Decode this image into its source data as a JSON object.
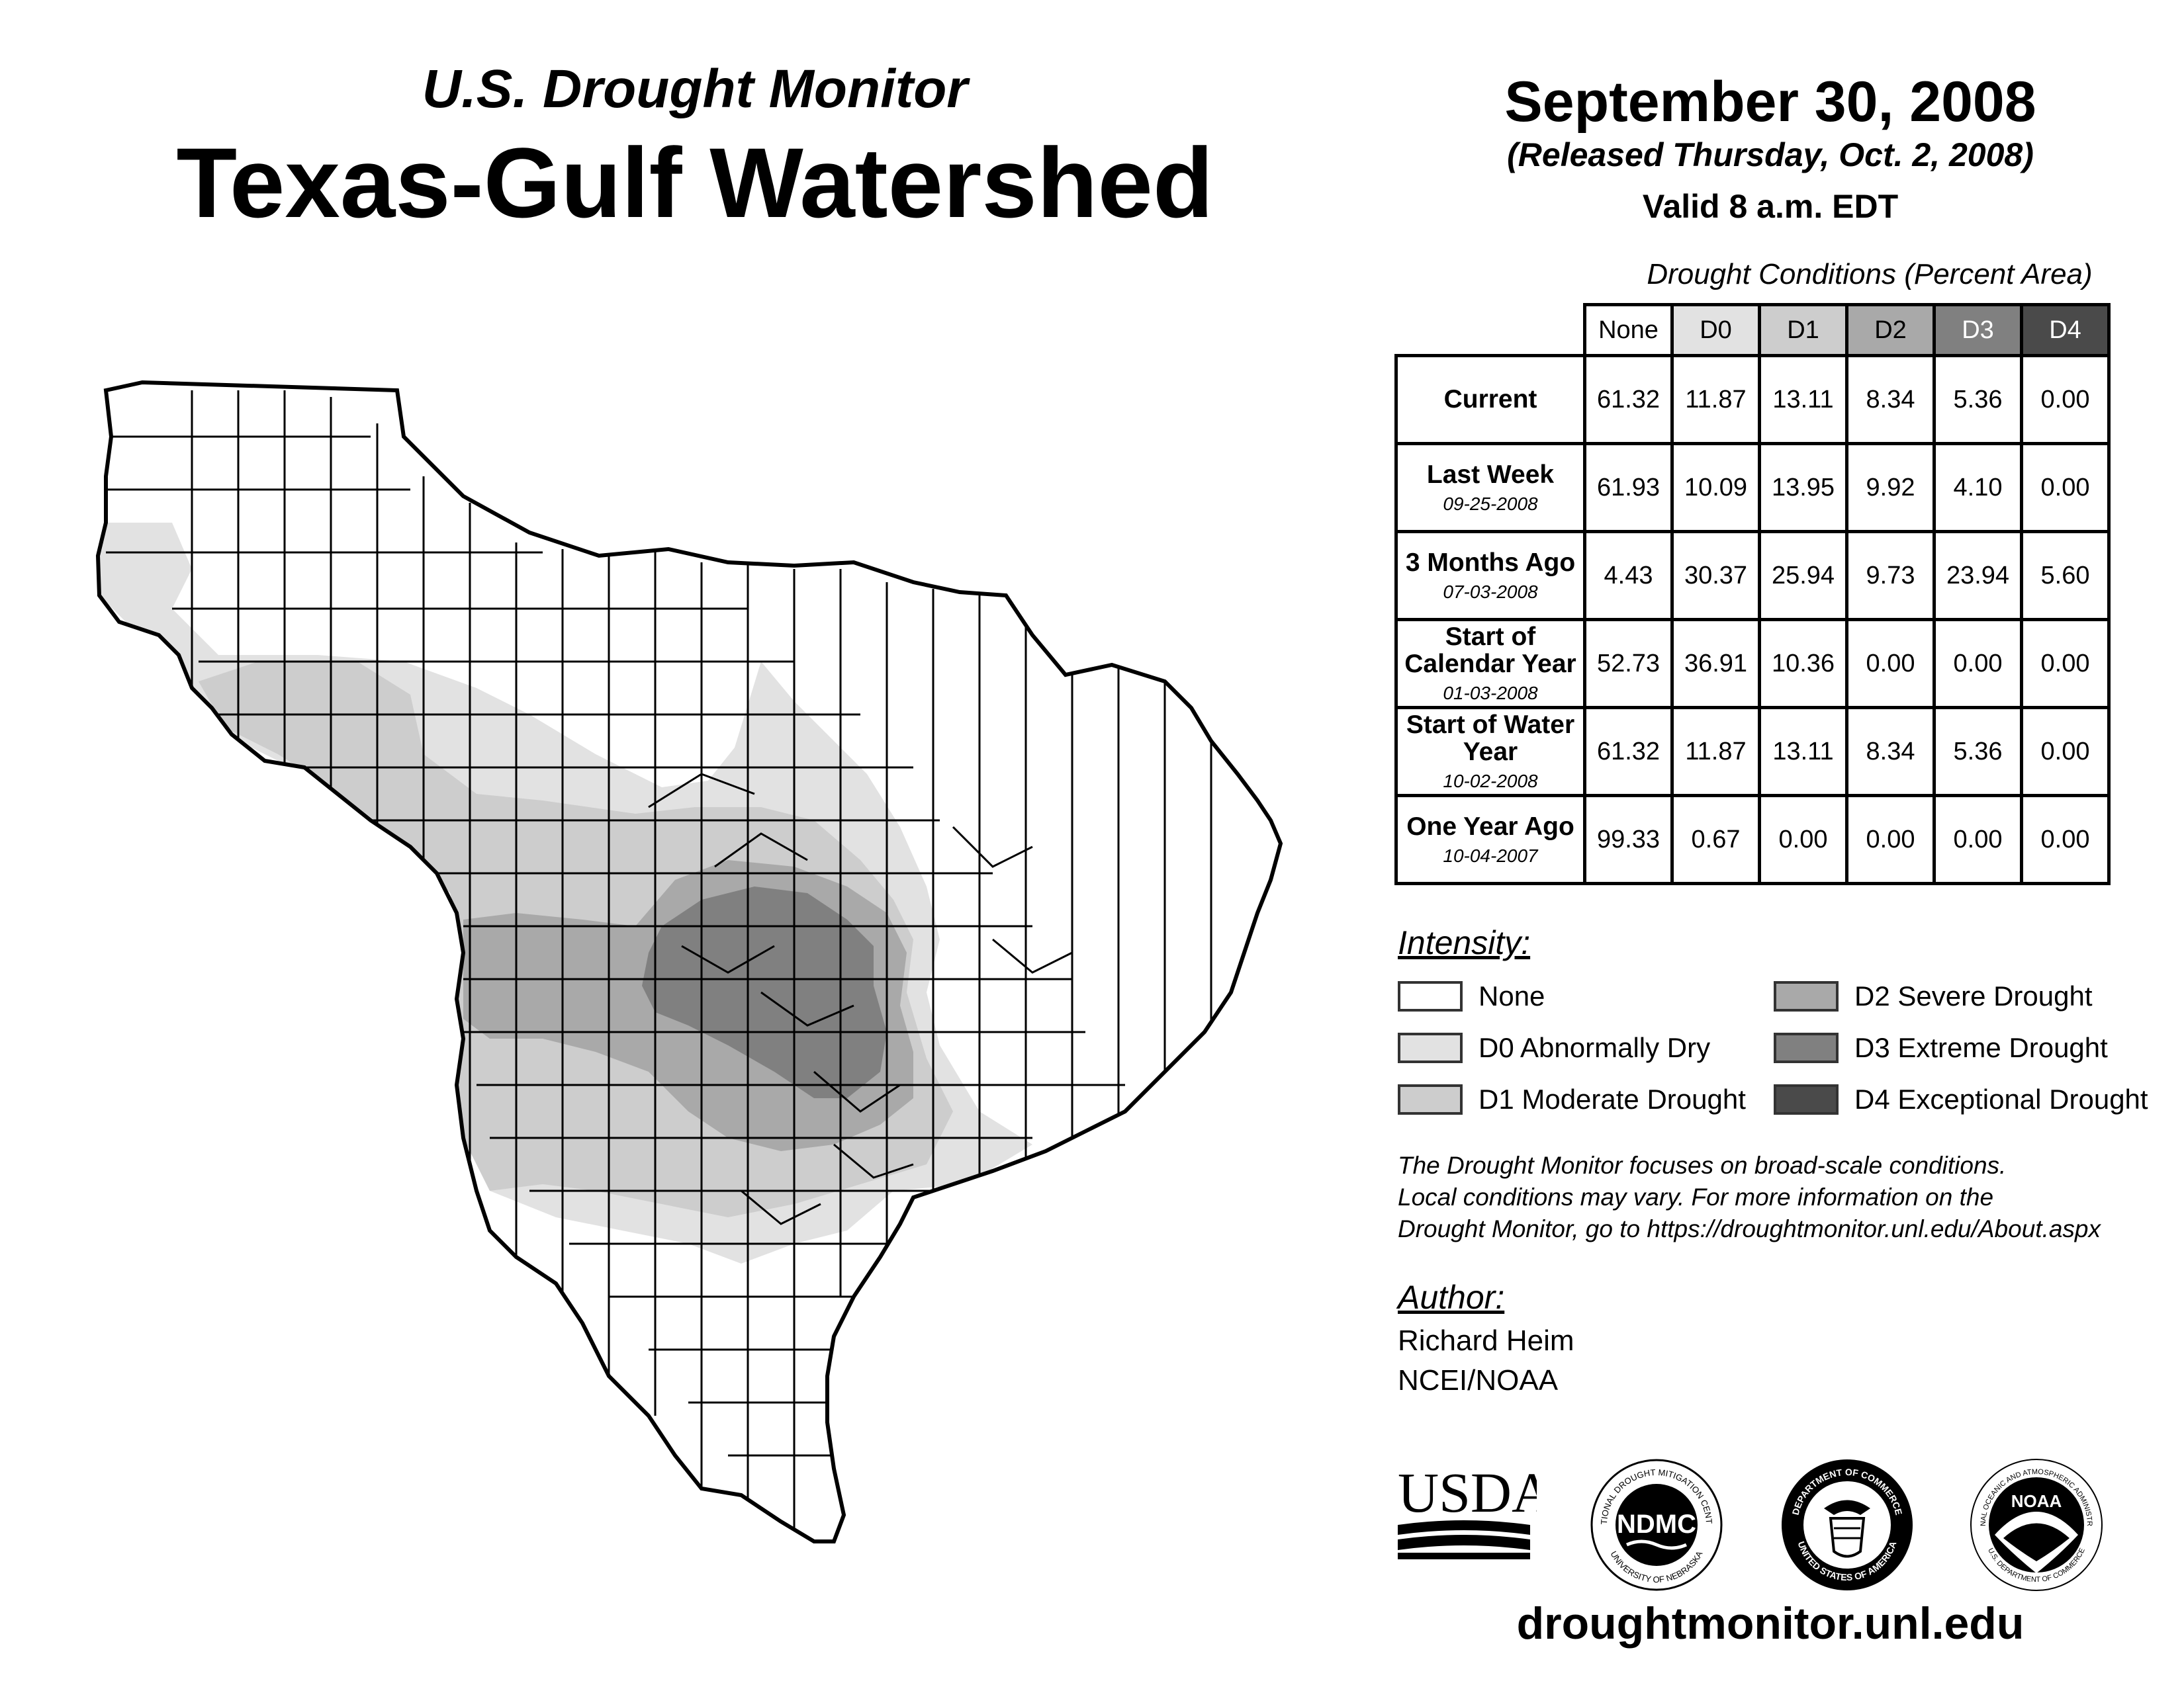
{
  "header": {
    "subtitle": "U.S. Drought Monitor",
    "title": "Texas-Gulf Watershed"
  },
  "date": {
    "map_date": "September 30, 2008",
    "released": "(Released Thursday, Oct. 2, 2008)",
    "valid": "Valid 8 a.m. EDT"
  },
  "conditions_table": {
    "caption": "Drought Conditions (Percent Area)",
    "columns": [
      "None",
      "D0",
      "D1",
      "D2",
      "D3",
      "D4"
    ],
    "column_colors": [
      "#ffffff",
      "#e2e2e2",
      "#cdcdcd",
      "#a9a9a9",
      "#808080",
      "#4a4a4a"
    ],
    "column_text_colors": [
      "#000000",
      "#000000",
      "#000000",
      "#000000",
      "#ffffff",
      "#ffffff"
    ],
    "rows": [
      {
        "label": "Current",
        "date": "",
        "values": [
          "61.32",
          "11.87",
          "13.11",
          "8.34",
          "5.36",
          "0.00"
        ]
      },
      {
        "label": "Last Week",
        "date": "09-25-2008",
        "values": [
          "61.93",
          "10.09",
          "13.95",
          "9.92",
          "4.10",
          "0.00"
        ]
      },
      {
        "label": "3 Months Ago",
        "date": "07-03-2008",
        "values": [
          "4.43",
          "30.37",
          "25.94",
          "9.73",
          "23.94",
          "5.60"
        ]
      },
      {
        "label": "Start of Calendar Year",
        "date": "01-03-2008",
        "values": [
          "52.73",
          "36.91",
          "10.36",
          "0.00",
          "0.00",
          "0.00"
        ]
      },
      {
        "label": "Start of Water Year",
        "date": "10-02-2008",
        "values": [
          "61.32",
          "11.87",
          "13.11",
          "8.34",
          "5.36",
          "0.00"
        ]
      },
      {
        "label": "One Year Ago",
        "date": "10-04-2007",
        "values": [
          "99.33",
          "0.67",
          "0.00",
          "0.00",
          "0.00",
          "0.00"
        ]
      }
    ]
  },
  "legend": {
    "heading": "Intensity:",
    "items": [
      {
        "label": "None",
        "color": "#ffffff"
      },
      {
        "label": "D0 Abnormally Dry",
        "color": "#e2e2e2"
      },
      {
        "label": "D1 Moderate Drought",
        "color": "#cdcdcd"
      },
      {
        "label": "D2 Severe Drought",
        "color": "#a9a9a9"
      },
      {
        "label": "D3 Extreme Drought",
        "color": "#808080"
      },
      {
        "label": "D4 Exceptional Drought",
        "color": "#4a4a4a"
      }
    ]
  },
  "note": {
    "lines": [
      "The Drought Monitor focuses on broad-scale conditions.",
      "Local conditions may vary. For more information on the",
      "Drought Monitor, go to https://droughtmonitor.unl.edu/About.aspx"
    ]
  },
  "author": {
    "heading": "Author:",
    "name": "Richard Heim",
    "org": "NCEI/NOAA"
  },
  "logos": {
    "usda": "USDA",
    "ndmc": "NDMC",
    "ndmc_ring_top": "NATIONAL DROUGHT MITIGATION CENTER",
    "ndmc_ring_bottom": "UNIVERSITY OF NEBRASKA",
    "doc_ring_top": "DEPARTMENT OF COMMERCE",
    "doc_ring_bottom": "UNITED STATES OF AMERICA",
    "noaa": "NOAA",
    "noaa_ring_top": "NATIONAL OCEANIC AND ATMOSPHERIC ADMINISTRATION",
    "noaa_ring_bottom": "U.S. DEPARTMENT OF COMMERCE"
  },
  "footer": {
    "url": "droughtmonitor.unl.edu"
  }
}
